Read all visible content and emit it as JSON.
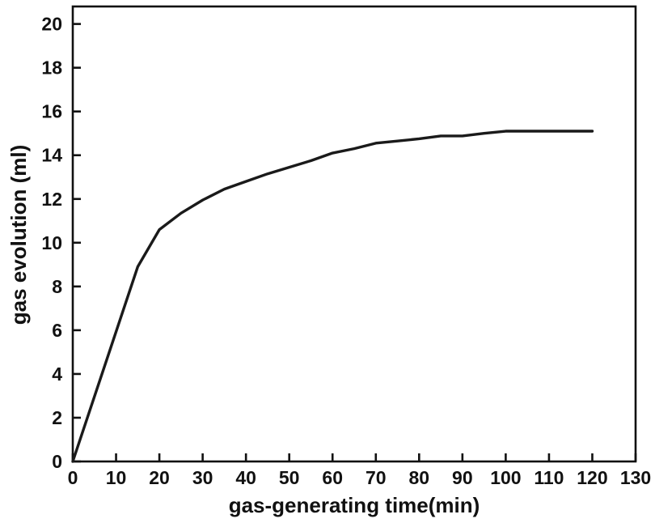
{
  "chart_data": {
    "type": "line",
    "title": "",
    "xlabel": "gas-generating time(min)",
    "ylabel": "gas evolution (ml)",
    "xlim": [
      0,
      130
    ],
    "ylim": [
      0,
      20
    ],
    "xticks": [
      0,
      10,
      20,
      30,
      40,
      50,
      60,
      70,
      80,
      90,
      100,
      110,
      120,
      130
    ],
    "yticks": [
      0,
      2,
      4,
      6,
      8,
      10,
      12,
      14,
      16,
      18,
      20
    ],
    "grid": false,
    "legend": null,
    "line_color": "#1a1a1a",
    "frame_color": "#111111",
    "series": [
      {
        "name": "gas evolution",
        "color": "#1a1a1a",
        "x": [
          0,
          15,
          20,
          25,
          30,
          35,
          40,
          45,
          50,
          55,
          60,
          65,
          70,
          75,
          80,
          85,
          90,
          95,
          100,
          105,
          110,
          115,
          120
        ],
        "y": [
          0,
          8.9,
          10.6,
          11.35,
          11.95,
          12.45,
          12.8,
          13.15,
          13.45,
          13.75,
          14.1,
          14.3,
          14.55,
          14.65,
          14.75,
          14.88,
          14.88,
          15.0,
          15.1,
          15.1,
          15.1,
          15.1,
          15.1
        ]
      }
    ]
  }
}
